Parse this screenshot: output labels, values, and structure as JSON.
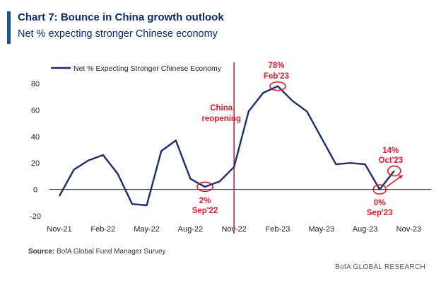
{
  "header": {
    "title": "Chart 7: Bounce in China growth outlook",
    "subtitle": "Net % expecting stronger Chinese economy"
  },
  "colors": {
    "accent": "#1f4e9c",
    "title": "#0b2b6b",
    "series": "#1c2d6e",
    "annotation": "#e0192c"
  },
  "chart_data": {
    "type": "line",
    "title": "Chart 7: Bounce in China growth outlook",
    "subtitle": "Net % expecting stronger Chinese economy",
    "xlabel": "",
    "ylabel": "",
    "ylim": [
      -20,
      80
    ],
    "yticks": [
      -20,
      0,
      20,
      40,
      60,
      80
    ],
    "ytick_labels": [
      "-20",
      "0",
      "20",
      "40",
      "60",
      "80"
    ],
    "xtick_labels": [
      "Nov-21",
      "Feb-22",
      "May-22",
      "Aug-22",
      "Nov-22",
      "Feb-23",
      "May-23",
      "Aug-23",
      "Nov-23"
    ],
    "legend": {
      "position": "top-left",
      "label": "Net % Expecting Stronger Chinese Economy"
    },
    "series": [
      {
        "name": "Net % Expecting Stronger Chinese Economy",
        "x": [
          "Nov-21",
          "Dec-21",
          "Jan-22",
          "Feb-22",
          "Mar-22",
          "Apr-22",
          "May-22",
          "Jun-22",
          "Jul-22",
          "Aug-22",
          "Sep-22",
          "Oct-22",
          "Nov-22",
          "Dec-22",
          "Jan-23",
          "Feb-23",
          "Mar-23",
          "Apr-23",
          "May-23",
          "Jun-23",
          "Jul-23",
          "Aug-23",
          "Sep-23",
          "Oct-23"
        ],
        "values": [
          -5,
          15,
          22,
          26,
          12,
          -11,
          -12,
          29,
          37,
          8,
          2,
          6,
          17,
          59,
          73,
          78,
          67,
          59,
          39,
          19,
          20,
          19,
          0,
          14
        ]
      }
    ],
    "annotations": {
      "reopening": {
        "line1": "China",
        "line2": "reopening",
        "at": "Nov-22"
      },
      "feb23": {
        "value": "78%",
        "date": "Feb'23"
      },
      "sep22": {
        "value": "2%",
        "date": "Sep'22"
      },
      "sep23": {
        "value": "0%",
        "date": "Sep'23"
      },
      "oct23": {
        "value": "14%",
        "date": "Oct'23"
      }
    }
  },
  "footer": {
    "source_label": "Source:",
    "source_text": "BofA Global Fund Manager Survey",
    "brand": "BofA GLOBAL RESEARCH"
  }
}
